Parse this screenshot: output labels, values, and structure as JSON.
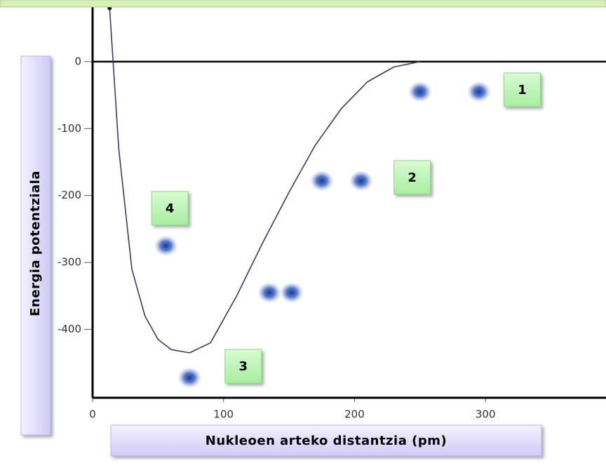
{
  "chart_data": {
    "type": "line",
    "x_label": "Nukleoen arteko distantzia (pm)",
    "y_label": "Energia potentziala",
    "xlim": [
      0,
      392
    ],
    "ylim": [
      -502,
      92
    ],
    "xticks": [
      0,
      100,
      200,
      300
    ],
    "yticks": [
      0,
      -100,
      -200,
      -300,
      -400
    ],
    "series": [
      {
        "color": "#3a3a6a",
        "x": [
          13,
          20,
          30,
          40,
          50,
          60,
          74,
          90,
          110,
          130,
          150,
          170,
          190,
          210,
          230,
          250
        ],
        "values": [
          80,
          -130,
          -310,
          -380,
          -415,
          -430,
          -435,
          -420,
          -350,
          -270,
          -195,
          -125,
          -70,
          -30,
          -8,
          0
        ]
      }
    ],
    "atoms": {
      "color": "#2a4fa8",
      "x": [
        250,
        295,
        175,
        205,
        135,
        152,
        56,
        74
      ],
      "values": [
        -45,
        -45,
        -178,
        -178,
        -345,
        -345,
        -275,
        -472
      ]
    },
    "annotations": [
      {
        "label": "1",
        "x": 328,
        "y": -42
      },
      {
        "label": "2",
        "x": 244,
        "y": -173
      },
      {
        "label": "3",
        "x": 115,
        "y": -455
      },
      {
        "label": "4",
        "x": 59,
        "y": -219
      }
    ]
  }
}
